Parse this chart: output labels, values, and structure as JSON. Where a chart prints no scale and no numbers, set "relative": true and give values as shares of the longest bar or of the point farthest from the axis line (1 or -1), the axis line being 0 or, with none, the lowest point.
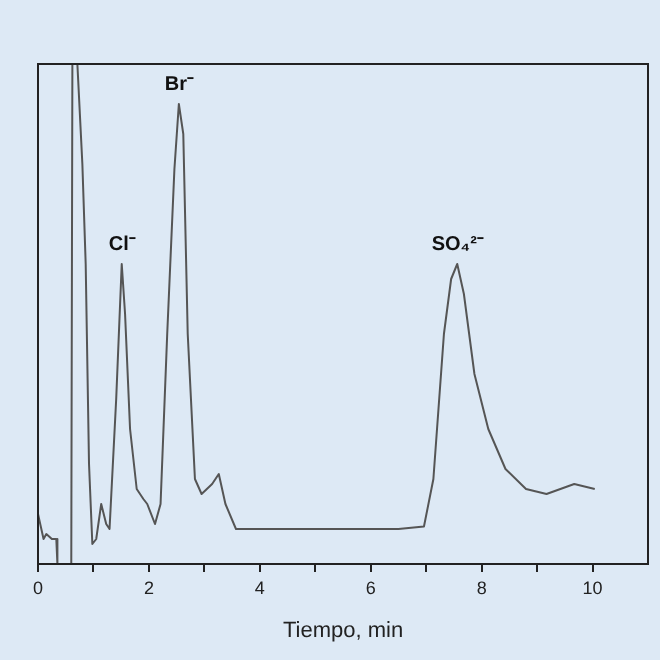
{
  "chart_data": {
    "type": "line",
    "xlabel": "Tiempo, min",
    "relative": true,
    "color": "#555555",
    "marker": "none",
    "x": [
      0,
      0.1,
      0.15,
      0.25,
      0.33,
      0.35,
      0.6,
      0.62,
      0.71,
      0.8,
      0.86,
      0.92,
      0.98,
      1.05,
      1.14,
      1.23,
      1.29,
      1.41,
      1.51,
      1.57,
      1.66,
      1.78,
      1.9,
      1.97,
      2.11,
      2.21,
      2.33,
      2.46,
      2.54,
      2.62,
      2.7,
      2.83,
      2.95,
      3.14,
      3.26,
      3.38,
      3.57,
      3.69,
      4.5,
      5.5,
      6.5,
      6.96,
      7.13,
      7.32,
      7.45,
      7.56,
      7.68,
      7.87,
      8.12,
      8.43,
      8.8,
      9.17,
      9.67,
      10.04
    ],
    "values": [
      0.1,
      0.05,
      0.06,
      0.05,
      0.05,
      0,
      0,
      1,
      1,
      0.8,
      0.6,
      0.2,
      0.04,
      0.05,
      0.12,
      0.08,
      0.07,
      0.33,
      0.6,
      0.5,
      0.27,
      0.15,
      0.13,
      0.12,
      0.08,
      0.12,
      0.46,
      0.79,
      0.92,
      0.86,
      0.46,
      0.17,
      0.14,
      0.16,
      0.18,
      0.12,
      0.07,
      0.07,
      0.07,
      0.07,
      0.07,
      0.075,
      0.17,
      0.46,
      0.57,
      0.6,
      0.54,
      0.38,
      0.27,
      0.19,
      0.15,
      0.14,
      0.16,
      0.15
    ],
    "xlim": [
      0,
      11
    ],
    "xticks": [
      0,
      {
        "value": 1,
        "label": null
      },
      2,
      {
        "value": 3,
        "label": null
      },
      4,
      {
        "value": 5,
        "label": null
      },
      6,
      {
        "value": 7,
        "label": null
      },
      8,
      {
        "value": 9,
        "label": null
      },
      10
    ],
    "annotations": [
      {
        "text": "Cl⁻",
        "x": 1.51,
        "y": 0.6
      },
      {
        "text": "Br⁻",
        "x": 2.54,
        "y": 0.92
      },
      {
        "text": "SO₄²⁻",
        "x": 7.56,
        "y": 0.6
      }
    ]
  }
}
